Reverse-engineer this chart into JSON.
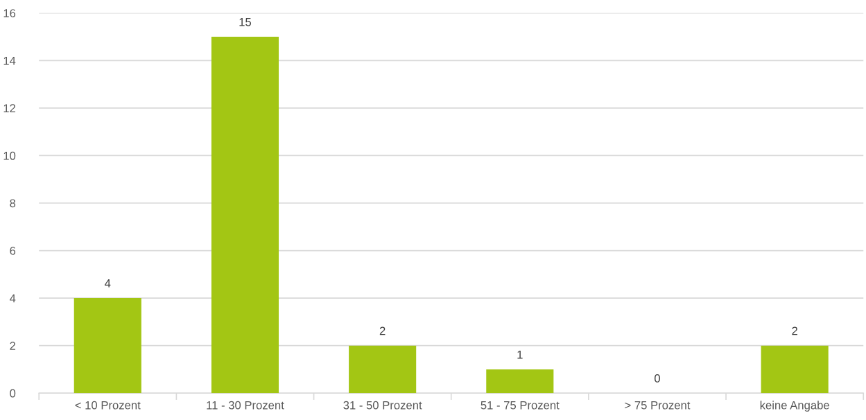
{
  "chart_data": {
    "type": "bar",
    "categories": [
      "< 10 Prozent",
      "11 - 30 Prozent",
      "31 - 50 Prozent",
      "51 - 75 Prozent",
      "> 75 Prozent",
      "keine Angabe"
    ],
    "values": [
      4,
      15,
      2,
      1,
      0,
      2
    ],
    "color": "#a3c614",
    "ylim": [
      0,
      16
    ],
    "yticks": [
      0,
      2,
      4,
      6,
      8,
      10,
      12,
      14,
      16
    ],
    "grid": "y",
    "data_labels": true
  }
}
